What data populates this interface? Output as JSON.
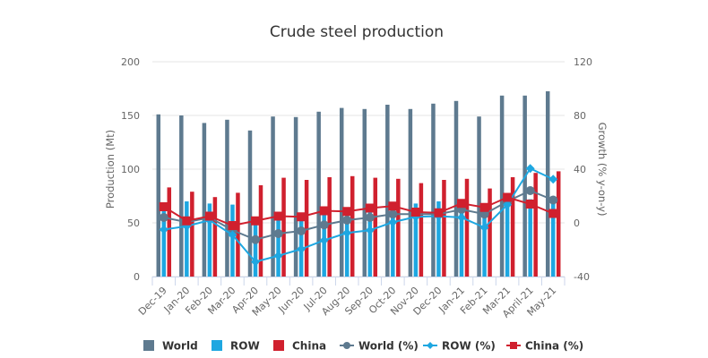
{
  "chart_data": {
    "type": "bar",
    "title": "Crude steel production",
    "xlabel": "",
    "ylabel": "Production (Mt)",
    "y2label": "Growth (% y-on-y)",
    "ylim": [
      0,
      200
    ],
    "y2lim": [
      -40,
      120
    ],
    "yticks": [
      "0",
      "50",
      "100",
      "150",
      "200"
    ],
    "y2ticks": [
      "-40",
      "0",
      "40",
      "80",
      "120"
    ],
    "grid": true,
    "legend_position": "bottom",
    "categories": [
      "Dec-19",
      "Jan-20",
      "Feb-20",
      "Mar-20",
      "Apr-20",
      "May-20",
      "Jun-20",
      "Jul-20",
      "Aug-20",
      "Sep-20",
      "Oct-20",
      "Nov-20",
      "Dec-20",
      "Jan-21",
      "Feb-21",
      "Mar-21",
      "April-21",
      "May-21"
    ],
    "series": [
      {
        "name": "World",
        "type": "bar",
        "axis": "left",
        "color": "#5e7a8f",
        "values": [
          151,
          150,
          143,
          146,
          136,
          149,
          148.5,
          153.5,
          157,
          156,
          160,
          156,
          161,
          163.5,
          149,
          168.5,
          168.5,
          172.5
        ]
      },
      {
        "name": "ROW",
        "type": "bar",
        "axis": "left",
        "color": "#1ea7e1",
        "values": [
          68,
          70,
          68,
          67,
          49,
          54,
          52,
          58,
          63,
          64,
          69,
          68,
          70,
          72,
          67,
          76,
          72,
          75
        ]
      },
      {
        "name": "China",
        "type": "bar",
        "axis": "left",
        "color": "#d0202e",
        "values": [
          83,
          79,
          74,
          78,
          85,
          92,
          90,
          92.5,
          93.5,
          92,
          91,
          87,
          90,
          91,
          82,
          92.5,
          96.5,
          98
        ]
      },
      {
        "name": "World (%)",
        "type": "line",
        "axis": "right",
        "color": "#5e7a8f",
        "marker": "circle",
        "values": [
          4,
          0.5,
          4,
          -5.5,
          -12.5,
          -8,
          -6,
          -1.5,
          2,
          4,
          6.5,
          6.5,
          6.5,
          10,
          6.5,
          16,
          24,
          17
        ]
      },
      {
        "name": "ROW (%)",
        "type": "line",
        "axis": "right",
        "color": "#1ea7e1",
        "marker": "diamond",
        "values": [
          -5,
          -2.5,
          2,
          -9,
          -29,
          -24.5,
          -19.5,
          -13,
          -7.5,
          -5.5,
          0.5,
          4.5,
          5,
          4,
          -3.5,
          13.5,
          40.5,
          32.5
        ]
      },
      {
        "name": "China (%)",
        "type": "line",
        "axis": "right",
        "color": "#d0202e",
        "marker": "square",
        "values": [
          12,
          1.5,
          5,
          -2,
          1.5,
          5,
          4.5,
          9,
          8.5,
          11,
          12.5,
          8,
          7.5,
          14.5,
          11.5,
          19,
          14,
          7
        ]
      }
    ]
  }
}
